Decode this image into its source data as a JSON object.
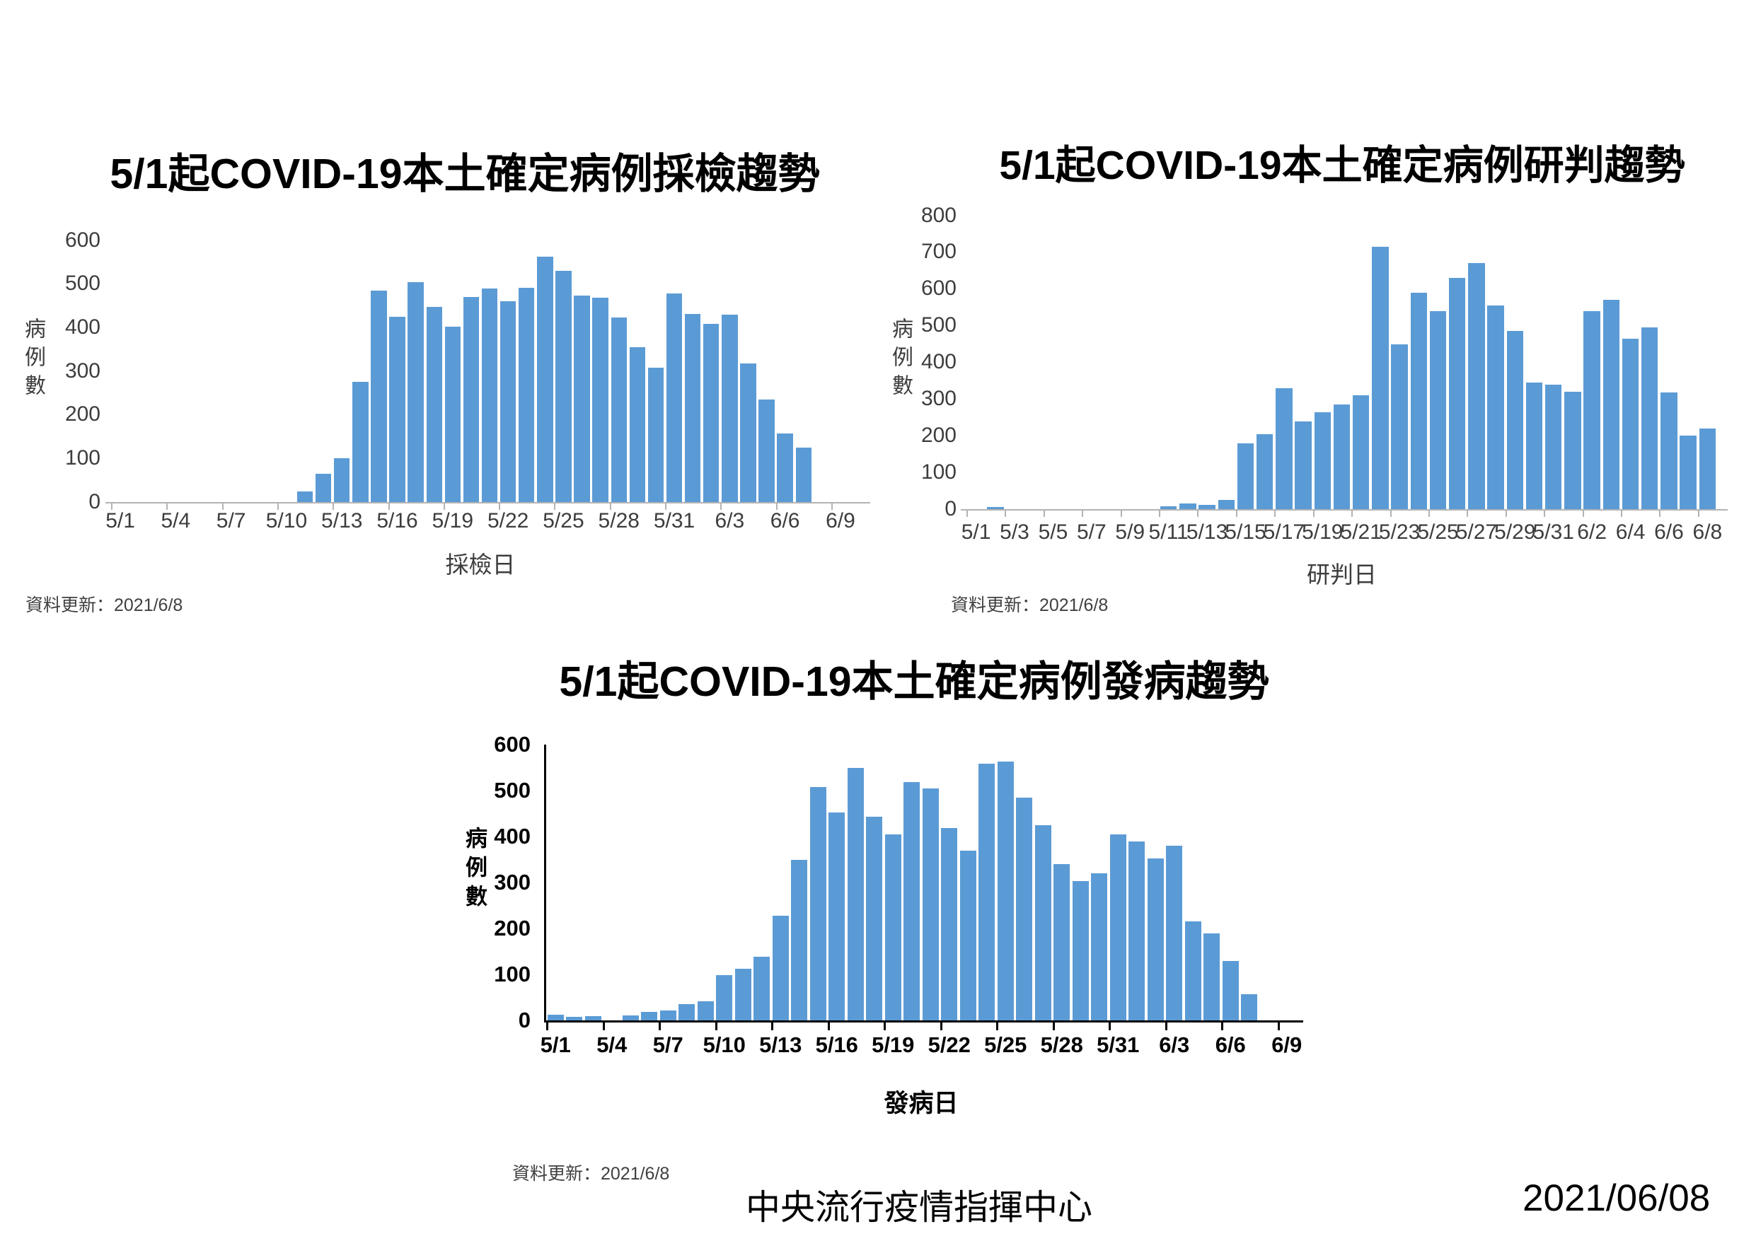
{
  "page": {
    "background": "#ffffff",
    "bar_color": "#5b9bd5",
    "footer_center": "中央流行疫情指揮中心",
    "footer_right": "2021/06/08"
  },
  "chart_data": [
    {
      "key": "sampling-date-trend",
      "type": "bar",
      "title": "5/1起COVID-19本土確定病例採檢趨勢",
      "xlabel": "採檢日",
      "ylabel": "病例數",
      "update_note": "資料更新：2021/6/8",
      "bar_color": "#5b9bd5",
      "ylim": [
        0,
        600
      ],
      "yticks": [
        0,
        100,
        200,
        300,
        400,
        500,
        600
      ],
      "xtick_interval": 3,
      "xtick_labels": [
        "5/1",
        "5/4",
        "5/7",
        "5/10",
        "5/13",
        "5/16",
        "5/19",
        "5/22",
        "5/25",
        "5/28",
        "5/31",
        "6/3",
        "6/6",
        "6/9"
      ],
      "categories": [
        "5/1",
        "5/2",
        "5/3",
        "5/4",
        "5/5",
        "5/6",
        "5/7",
        "5/8",
        "5/9",
        "5/10",
        "5/11",
        "5/12",
        "5/13",
        "5/14",
        "5/15",
        "5/16",
        "5/17",
        "5/18",
        "5/19",
        "5/20",
        "5/21",
        "5/22",
        "5/23",
        "5/24",
        "5/25",
        "5/26",
        "5/27",
        "5/28",
        "5/29",
        "5/30",
        "5/31",
        "6/1",
        "6/2",
        "6/3",
        "6/4",
        "6/5",
        "6/6",
        "6/7",
        "6/8",
        "6/9"
      ],
      "values": [
        0,
        0,
        0,
        0,
        0,
        0,
        0,
        0,
        0,
        0,
        25,
        65,
        100,
        275,
        485,
        425,
        505,
        448,
        402,
        470,
        490,
        460,
        492,
        563,
        530,
        473,
        468,
        423,
        355,
        308,
        478,
        432,
        408,
        430,
        318,
        235,
        158,
        125,
        0,
        0
      ]
    },
    {
      "key": "judgment-date-trend",
      "type": "bar",
      "title": "5/1起COVID-19本土確定病例研判趨勢",
      "xlabel": "研判日",
      "ylabel": "病例數",
      "update_note": "資料更新：2021/6/8",
      "bar_color": "#5b9bd5",
      "ylim": [
        0,
        800
      ],
      "yticks": [
        0,
        100,
        200,
        300,
        400,
        500,
        600,
        700,
        800
      ],
      "xtick_interval": 2,
      "xtick_labels": [
        "5/1",
        "5/3",
        "5/5",
        "5/7",
        "5/9",
        "5/11",
        "5/13",
        "5/15",
        "5/17",
        "5/19",
        "5/21",
        "5/23",
        "5/25",
        "5/27",
        "5/29",
        "5/31",
        "6/2",
        "6/4",
        "6/6",
        "6/8"
      ],
      "categories": [
        "5/1",
        "5/2",
        "5/3",
        "5/4",
        "5/5",
        "5/6",
        "5/7",
        "5/8",
        "5/9",
        "5/10",
        "5/11",
        "5/12",
        "5/13",
        "5/14",
        "5/15",
        "5/16",
        "5/17",
        "5/18",
        "5/19",
        "5/20",
        "5/21",
        "5/22",
        "5/23",
        "5/24",
        "5/25",
        "5/26",
        "5/27",
        "5/28",
        "5/29",
        "5/30",
        "5/31",
        "6/1",
        "6/2",
        "6/3",
        "6/4",
        "6/5",
        "6/6",
        "6/7",
        "6/8"
      ],
      "values": [
        0,
        5,
        0,
        0,
        0,
        0,
        0,
        0,
        0,
        0,
        8,
        15,
        12,
        25,
        180,
        205,
        330,
        240,
        265,
        285,
        310,
        715,
        450,
        590,
        540,
        630,
        670,
        555,
        485,
        345,
        340,
        320,
        540,
        570,
        465,
        495,
        318,
        200,
        220
      ]
    },
    {
      "key": "onset-date-trend",
      "type": "bar",
      "title": "5/1起COVID-19本土確定病例發病趨勢",
      "xlabel": "發病日",
      "ylabel": "病例數",
      "update_note": "資料更新：2021/6/8",
      "bar_color": "#5b9bd5",
      "ylim": [
        0,
        600
      ],
      "yticks": [
        0,
        100,
        200,
        300,
        400,
        500,
        600
      ],
      "xtick_interval": 3,
      "xtick_labels": [
        "5/1",
        "5/4",
        "5/7",
        "5/10",
        "5/13",
        "5/16",
        "5/19",
        "5/22",
        "5/25",
        "5/28",
        "5/31",
        "6/3",
        "6/6",
        "6/9"
      ],
      "categories": [
        "5/1",
        "5/2",
        "5/3",
        "5/4",
        "5/5",
        "5/6",
        "5/7",
        "5/8",
        "5/9",
        "5/10",
        "5/11",
        "5/12",
        "5/13",
        "5/14",
        "5/15",
        "5/16",
        "5/17",
        "5/18",
        "5/19",
        "5/20",
        "5/21",
        "5/22",
        "5/23",
        "5/24",
        "5/25",
        "5/26",
        "5/27",
        "5/28",
        "5/29",
        "5/30",
        "5/31",
        "6/1",
        "6/2",
        "6/3",
        "6/4",
        "6/5",
        "6/6",
        "6/7",
        "6/8",
        "6/9"
      ],
      "values": [
        12,
        8,
        10,
        0,
        11,
        19,
        22,
        36,
        42,
        98,
        112,
        138,
        228,
        350,
        508,
        452,
        549,
        443,
        405,
        518,
        505,
        418,
        370,
        558,
        563,
        485,
        424,
        340,
        303,
        320,
        405,
        390,
        353,
        380,
        215,
        190,
        130,
        57,
        0,
        0
      ]
    }
  ]
}
